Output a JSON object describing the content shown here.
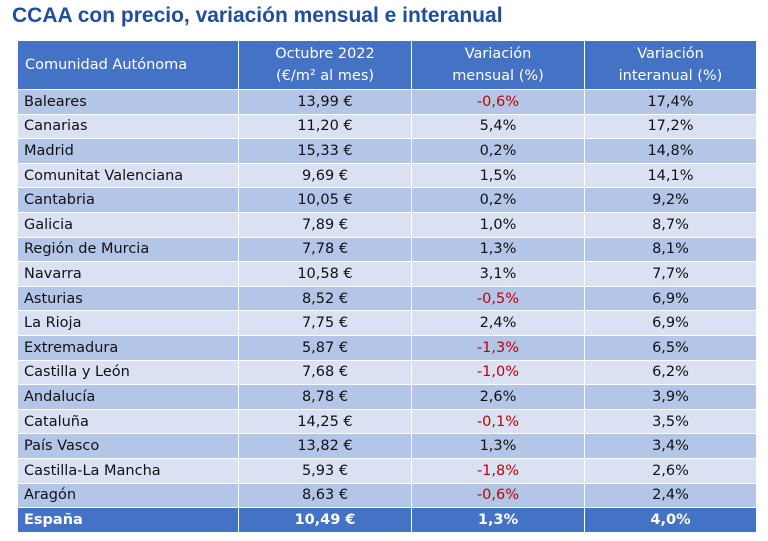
{
  "title": "CCAA con precio, variación mensual e interanual",
  "headers": {
    "col1": "Comunidad Autónoma",
    "col2_line1": "Octubre 2022",
    "col2_line2": "(€/m² al mes)",
    "col3_line1": "Variación",
    "col3_line2": "mensual (%)",
    "col4_line1": "Variación",
    "col4_line2": "interanual (%)"
  },
  "rows": [
    {
      "name": "Baleares",
      "price": "13,99 €",
      "monthly": "-0,6%",
      "yearly": "17,4%"
    },
    {
      "name": "Canarias",
      "price": "11,20 €",
      "monthly": "5,4%",
      "yearly": "17,2%"
    },
    {
      "name": "Madrid",
      "price": "15,33 €",
      "monthly": "0,2%",
      "yearly": "14,8%"
    },
    {
      "name": "Comunitat Valenciana",
      "price": "9,69 €",
      "monthly": "1,5%",
      "yearly": "14,1%"
    },
    {
      "name": "Cantabria",
      "price": "10,05 €",
      "monthly": "0,2%",
      "yearly": "9,2%"
    },
    {
      "name": "Galicia",
      "price": "7,89 €",
      "monthly": "1,0%",
      "yearly": "8,7%"
    },
    {
      "name": "Región de Murcia",
      "price": "7,78 €",
      "monthly": "1,3%",
      "yearly": "8,1%"
    },
    {
      "name": "Navarra",
      "price": "10,58 €",
      "monthly": "3,1%",
      "yearly": "7,7%"
    },
    {
      "name": "Asturias",
      "price": "8,52 €",
      "monthly": "-0,5%",
      "yearly": "6,9%"
    },
    {
      "name": "La Rioja",
      "price": "7,75 €",
      "monthly": "2,4%",
      "yearly": "6,9%"
    },
    {
      "name": "Extremadura",
      "price": "5,87 €",
      "monthly": "-1,3%",
      "yearly": "6,5%"
    },
    {
      "name": "Castilla y León",
      "price": "7,68 €",
      "monthly": "-1,0%",
      "yearly": "6,2%"
    },
    {
      "name": "Andalucía",
      "price": "8,78 €",
      "monthly": "2,6%",
      "yearly": "3,9%"
    },
    {
      "name": "Cataluña",
      "price": "14,25 €",
      "monthly": "-0,1%",
      "yearly": "3,5%"
    },
    {
      "name": "País Vasco",
      "price": "13,82 €",
      "monthly": "1,3%",
      "yearly": "3,4%"
    },
    {
      "name": "Castilla-La Mancha",
      "price": "5,93 €",
      "monthly": "-1,8%",
      "yearly": "2,6%"
    },
    {
      "name": "Aragón",
      "price": "8,63 €",
      "monthly": "-0,6%",
      "yearly": "2,4%"
    }
  ],
  "total": {
    "name": "España",
    "price": "10,49 €",
    "monthly": "1,3%",
    "yearly": "4,0%"
  },
  "colors": {
    "title": "#1f4e9a",
    "header_bg": "#4472c4",
    "row_dark": "#b4c6e7",
    "row_light": "#d9e1f2",
    "negative": "#c00000"
  }
}
